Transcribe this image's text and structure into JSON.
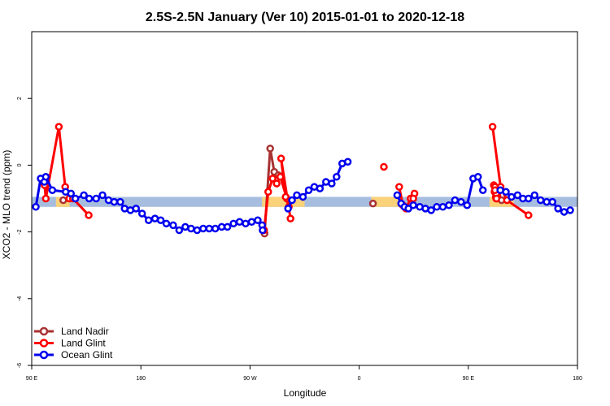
{
  "chart_data": {
    "type": "line",
    "title": "2.5S-2.5N January (Ver 10)   2015-01-01 to 2020-12-18",
    "xlabel": "Longitude",
    "ylabel": "XCO2 - MLO trend (ppm)",
    "xlim": [
      0,
      360
    ],
    "ylim": [
      -6,
      4
    ],
    "x_tick_positions": [
      0,
      72,
      144,
      216,
      288,
      360
    ],
    "x_tick_labels": [
      "90 E",
      "180",
      "90 W",
      "0",
      "90 E",
      "180"
    ],
    "y_ticks": [
      -6,
      -4,
      -2,
      0,
      2
    ],
    "y_tick_labels": [
      "-6",
      "-4",
      "-2",
      "0",
      "2"
    ],
    "grid": false,
    "legend_position": "bottom-left",
    "bands": [
      {
        "name": "ocean-band",
        "color": "#a7bddf",
        "y_range": [
          -1.25,
          -0.95
        ],
        "x_ranges": [
          [
            0,
            360
          ]
        ]
      },
      {
        "name": "land-band",
        "color": "#f9d27a",
        "y_range": [
          -1.25,
          -0.95
        ],
        "x_ranges": [
          [
            16,
            25
          ],
          [
            152,
            180
          ],
          [
            224,
            243
          ],
          [
            302,
            318
          ]
        ]
      }
    ],
    "series": [
      {
        "name": "Land Nadir",
        "color": "#a83232",
        "segments": [
          [
            [
              20.8,
              -1.05
            ]
          ],
          [
            [
              153.6,
              -2.05
            ],
            [
              157.3,
              0.5
            ],
            [
              160.0,
              -0.2
            ],
            [
              162.7,
              -0.3
            ]
          ],
          [
            [
              225.1,
              -1.15
            ]
          ],
          [
            [
              309.9,
              -1.05
            ]
          ]
        ]
      },
      {
        "name": "Land Glint",
        "color": "#ff0000",
        "segments": [
          [
            [
              8.5,
              -0.6
            ],
            [
              9.3,
              -1.0
            ],
            [
              17.9,
              1.15
            ],
            [
              22.1,
              -0.65
            ],
            [
              24.8,
              -1.0
            ],
            [
              27.2,
              -1.0
            ],
            [
              37.6,
              -1.5
            ]
          ],
          [
            [
              153.3,
              -1.95
            ],
            [
              156.0,
              -0.8
            ],
            [
              158.9,
              -0.4
            ],
            [
              161.6,
              -0.55
            ],
            [
              164.0,
              -0.35
            ],
            [
              168.3,
              -1.0
            ],
            [
              169.6,
              -1.25
            ],
            [
              167.5,
              -0.95
            ],
            [
              164.5,
              0.2
            ],
            [
              170.7,
              -1.6
            ]
          ],
          [
            [
              232.3,
              -0.05
            ]
          ],
          [
            [
              242.4,
              -0.65
            ],
            [
              244.8,
              -1.2
            ],
            [
              246.9,
              -1.3
            ],
            [
              249.9,
              -1.0
            ],
            [
              252.5,
              -0.85
            ],
            [
              251.7,
              -1.0
            ]
          ],
          [
            [
              304.8,
              -0.6
            ],
            [
              306.4,
              -1.0
            ],
            [
              305.6,
              -0.65
            ],
            [
              306.4,
              -0.9
            ],
            [
              307.2,
              -0.9
            ],
            [
              305.3,
              -0.8
            ],
            [
              306.1,
              -0.75
            ],
            [
              307.2,
              -0.8
            ],
            [
              306.4,
              -0.95
            ],
            [
              306.1,
              -0.95
            ],
            [
              306.4,
              -0.85
            ],
            [
              305.6,
              -0.75
            ],
            [
              306.6,
              -1.0
            ]
          ],
          [
            [
              304.0,
              1.15
            ],
            [
              309.3,
              -0.65
            ],
            [
              313.5,
              -1.05
            ],
            [
              327.7,
              -1.5
            ]
          ]
        ]
      },
      {
        "name": "Ocean Glint",
        "color": "#0000ee",
        "segments": [
          [
            [
              2.7,
              -1.25
            ],
            [
              5.9,
              -0.4
            ],
            [
              8.3,
              -0.5
            ],
            [
              9.3,
              -0.35
            ],
            [
              13.6,
              -0.75
            ],
            [
              22.4,
              -0.8
            ],
            [
              25.9,
              -0.85
            ],
            [
              28.8,
              -1.0
            ],
            [
              34.4,
              -0.9
            ],
            [
              37.9,
              -1.0
            ],
            [
              42.5,
              -1.0
            ],
            [
              46.7,
              -0.9
            ],
            [
              50.7,
              -1.05
            ],
            [
              54.4,
              -1.1
            ],
            [
              58.4,
              -1.1
            ],
            [
              61.3,
              -1.3
            ],
            [
              65.1,
              -1.35
            ],
            [
              68.8,
              -1.3
            ],
            [
              72.8,
              -1.45
            ],
            [
              77.1,
              -1.65
            ],
            [
              81.3,
              -1.6
            ],
            [
              85.1,
              -1.65
            ],
            [
              88.8,
              -1.75
            ],
            [
              93.3,
              -1.8
            ],
            [
              97.3,
              -1.95
            ],
            [
              101.3,
              -1.85
            ],
            [
              105.1,
              -1.9
            ],
            [
              109.1,
              -1.95
            ],
            [
              113.1,
              -1.9
            ],
            [
              117.1,
              -1.9
            ],
            [
              121.1,
              -1.9
            ],
            [
              125.3,
              -1.85
            ],
            [
              129.1,
              -1.85
            ],
            [
              133.1,
              -1.75
            ],
            [
              137.1,
              -1.7
            ],
            [
              141.1,
              -1.75
            ],
            [
              145.1,
              -1.7
            ],
            [
              149.1,
              -1.65
            ],
            [
              152.0,
              -1.8
            ]
          ],
          [
            [
              152.3,
              -1.95
            ]
          ],
          [
            [
              169.1,
              -1.3
            ],
            [
              171.7,
              -1.05
            ],
            [
              174.9,
              -0.9
            ],
            [
              178.9,
              -0.95
            ],
            [
              182.7,
              -0.75
            ],
            [
              186.4,
              -0.65
            ],
            [
              190.1,
              -0.7
            ],
            [
              194.1,
              -0.5
            ],
            [
              197.9,
              -0.55
            ],
            [
              201.1,
              -0.35
            ],
            [
              204.8,
              0.05
            ],
            [
              208.5,
              0.1
            ]
          ],
          [
            [
              241.1,
              -0.9
            ],
            [
              243.7,
              -1.15
            ],
            [
              245.9,
              -1.25
            ],
            [
              248.5,
              -1.3
            ],
            [
              251.7,
              -1.2
            ],
            [
              256.0,
              -1.25
            ],
            [
              259.7,
              -1.3
            ],
            [
              263.5,
              -1.35
            ],
            [
              267.2,
              -1.25
            ],
            [
              271.2,
              -1.25
            ],
            [
              275.2,
              -1.2
            ],
            [
              279.2,
              -1.05
            ],
            [
              283.2,
              -1.1
            ],
            [
              287.2,
              -1.2
            ],
            [
              291.2,
              -0.4
            ],
            [
              294.4,
              -0.35
            ],
            [
              297.6,
              -0.75
            ]
          ],
          [
            [
              309.1,
              -0.75
            ],
            [
              312.8,
              -0.8
            ],
            [
              316.5,
              -0.95
            ],
            [
              320.5,
              -0.9
            ],
            [
              324.0,
              -1.0
            ],
            [
              327.7,
              -1.0
            ],
            [
              331.7,
              -0.9
            ],
            [
              335.7,
              -1.05
            ],
            [
              339.7,
              -1.1
            ],
            [
              343.5,
              -1.1
            ],
            [
              347.2,
              -1.3
            ],
            [
              351.2,
              -1.4
            ],
            [
              355.2,
              -1.35
            ]
          ]
        ]
      }
    ]
  }
}
